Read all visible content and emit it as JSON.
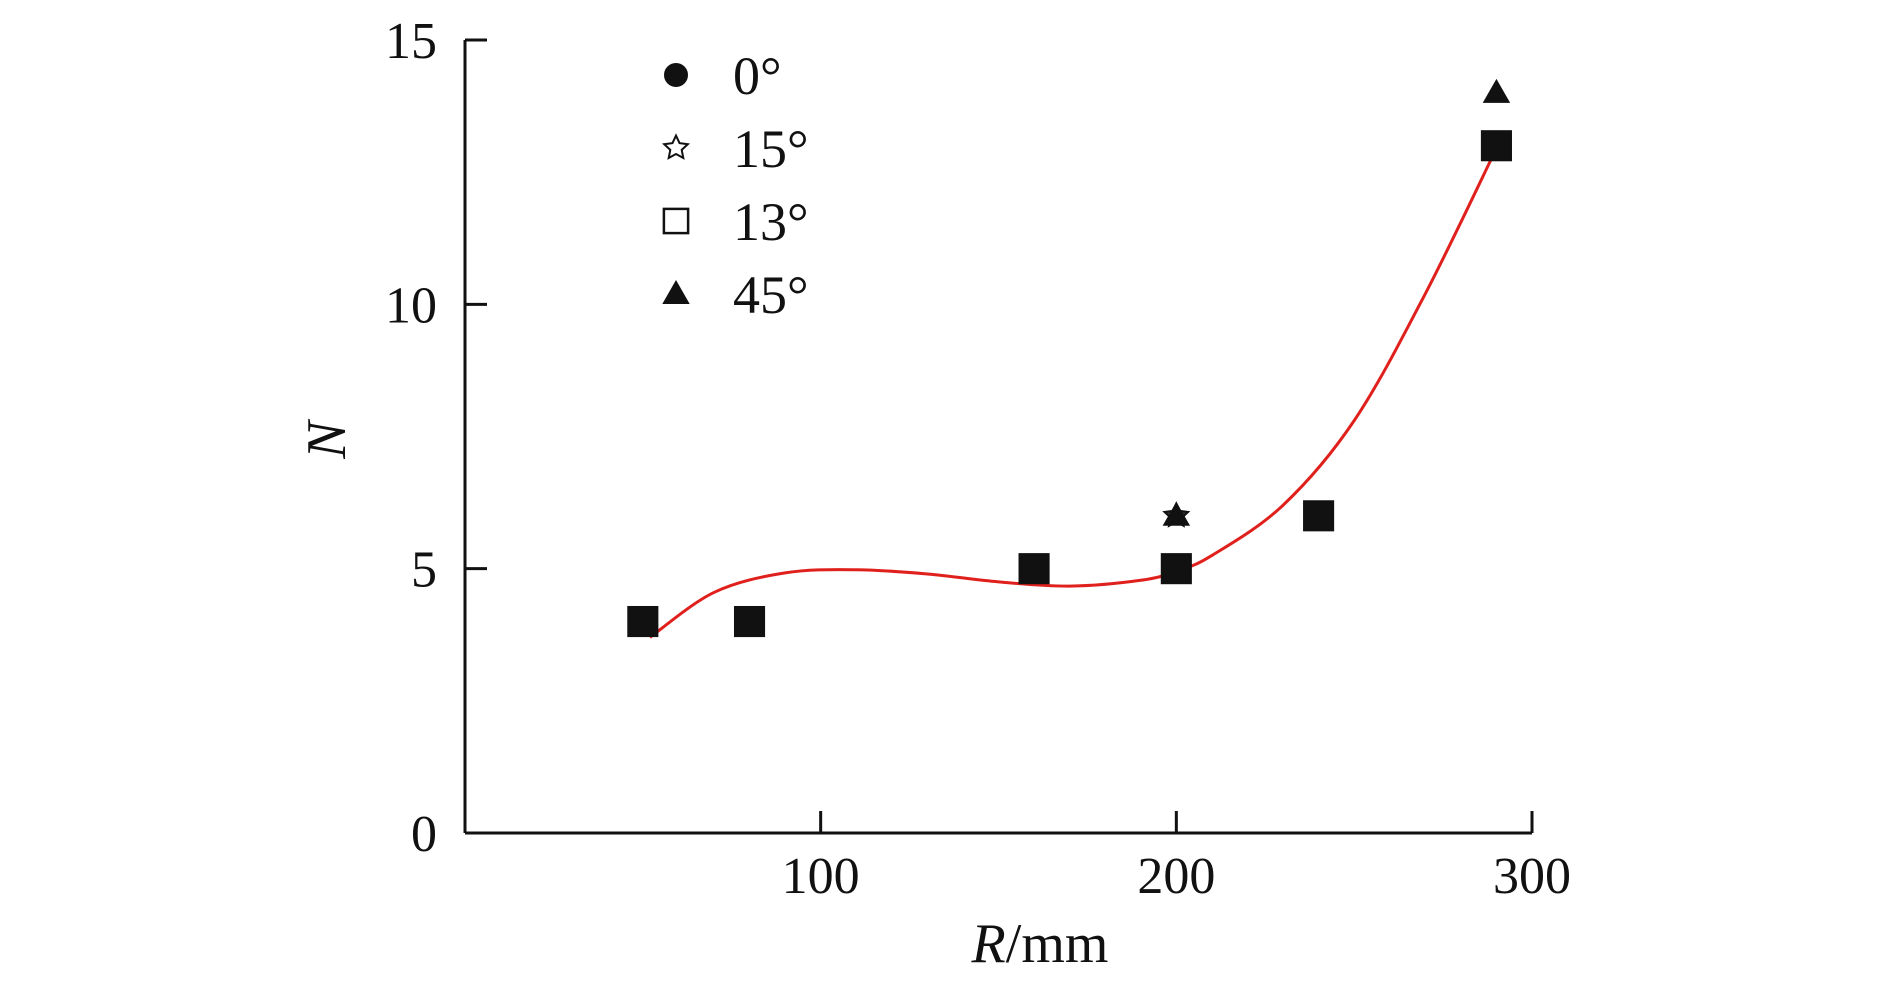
{
  "chart_data": {
    "type": "scatter",
    "xlabel_italic": "R",
    "xlabel_unit": "/mm",
    "ylabel": "N",
    "xlim": [
      0,
      300
    ],
    "ylim": [
      0,
      15
    ],
    "xticks": [
      "100",
      "200",
      "300"
    ],
    "xtick_values": [
      100,
      200,
      300
    ],
    "yticks": [
      "0",
      "5",
      "10",
      "15"
    ],
    "ytick_values": [
      0,
      5,
      10,
      15
    ],
    "grid": false,
    "legend_position": "top-left",
    "series": [
      {
        "name": "0°",
        "marker": "circle",
        "x": [
          50,
          80,
          160,
          200,
          240,
          290
        ],
        "y": [
          4,
          4,
          5,
          5,
          6,
          13
        ]
      },
      {
        "name": "15°",
        "marker": "star",
        "x": [
          50,
          80,
          160,
          200,
          240,
          290
        ],
        "y": [
          4,
          4,
          5,
          6,
          6,
          13
        ]
      },
      {
        "name": "13°",
        "marker": "square",
        "x": [
          50,
          80,
          160,
          200,
          240,
          290
        ],
        "y": [
          4,
          4,
          5,
          5,
          6,
          13
        ]
      },
      {
        "name": "45°",
        "marker": "triangle",
        "x": [
          50,
          80,
          160,
          200,
          240,
          290
        ],
        "y": [
          4,
          4,
          5,
          6,
          6,
          14
        ]
      }
    ],
    "fit_curve": {
      "color": "#e0201c",
      "x": [
        52,
        70,
        90,
        110,
        130,
        150,
        170,
        190,
        200,
        210,
        230,
        250,
        270,
        290
      ],
      "y": [
        3.7,
        4.55,
        4.92,
        4.98,
        4.9,
        4.75,
        4.67,
        4.78,
        4.95,
        5.25,
        6.2,
        7.8,
        10.2,
        12.95
      ]
    }
  }
}
